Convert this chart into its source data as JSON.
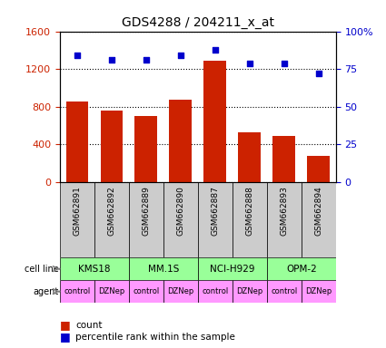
{
  "title": "GDS4288 / 204211_x_at",
  "samples": [
    "GSM662891",
    "GSM662892",
    "GSM662889",
    "GSM662890",
    "GSM662887",
    "GSM662888",
    "GSM662893",
    "GSM662894"
  ],
  "counts": [
    860,
    760,
    700,
    870,
    1290,
    530,
    490,
    280
  ],
  "percentile_ranks": [
    84,
    81,
    81,
    84,
    88,
    79,
    79,
    72
  ],
  "cell_lines": [
    {
      "label": "KMS18",
      "span": [
        0,
        2
      ]
    },
    {
      "label": "MM.1S",
      "span": [
        2,
        4
      ]
    },
    {
      "label": "NCI-H929",
      "span": [
        4,
        6
      ]
    },
    {
      "label": "OPM-2",
      "span": [
        6,
        8
      ]
    }
  ],
  "agents": [
    "control",
    "DZNep",
    "control",
    "DZNep",
    "control",
    "DZNep",
    "control",
    "DZNep"
  ],
  "bar_color": "#cc2200",
  "dot_color": "#0000cc",
  "left_ylim": [
    0,
    1600
  ],
  "left_yticks": [
    0,
    400,
    800,
    1200,
    1600
  ],
  "right_ylim": [
    0,
    100
  ],
  "right_yticks": [
    0,
    25,
    50,
    75,
    100
  ],
  "right_yticklabels": [
    "0",
    "25",
    "50",
    "75",
    "100%"
  ],
  "cell_line_color": "#99ff99",
  "agent_color": "#ff99ff",
  "sample_bg_color": "#cccccc",
  "legend_count_color": "#cc2200",
  "legend_dot_color": "#0000cc",
  "left_tick_color": "#cc2200",
  "right_tick_color": "#0000cc"
}
